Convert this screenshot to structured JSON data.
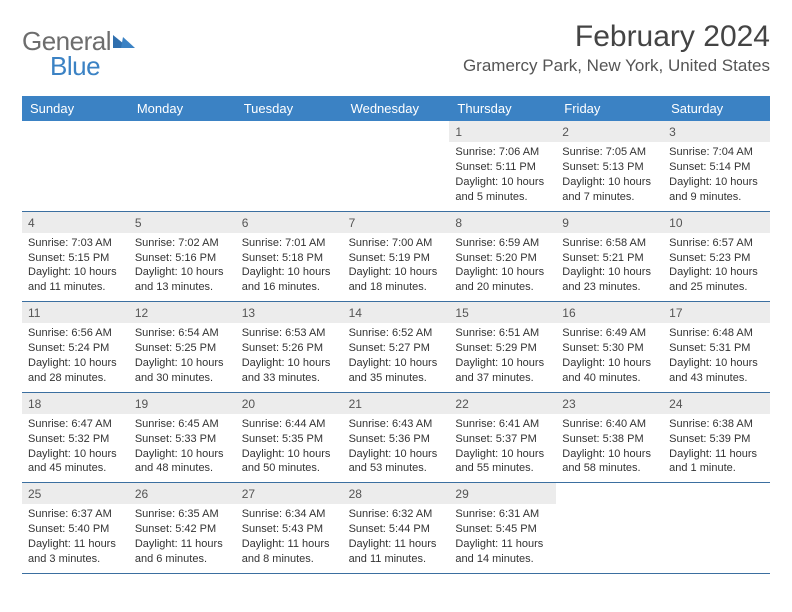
{
  "logo": {
    "general": "General",
    "blue": "Blue"
  },
  "title": "February 2024",
  "location": "Gramercy Park, New York, United States",
  "colors": {
    "header_bg": "#3b82c4",
    "header_text": "#ffffff",
    "daynum_bg": "#ececec",
    "row_border": "#3b6fa0",
    "text": "#333333",
    "title_text": "#444444",
    "logo_gray": "#6d6d6d",
    "logo_blue": "#3b82c4"
  },
  "daysOfWeek": [
    "Sunday",
    "Monday",
    "Tuesday",
    "Wednesday",
    "Thursday",
    "Friday",
    "Saturday"
  ],
  "weeks": [
    [
      {
        "n": "",
        "sunrise": "",
        "sunset": "",
        "daylight": ""
      },
      {
        "n": "",
        "sunrise": "",
        "sunset": "",
        "daylight": ""
      },
      {
        "n": "",
        "sunrise": "",
        "sunset": "",
        "daylight": ""
      },
      {
        "n": "",
        "sunrise": "",
        "sunset": "",
        "daylight": ""
      },
      {
        "n": "1",
        "sunrise": "Sunrise: 7:06 AM",
        "sunset": "Sunset: 5:11 PM",
        "daylight": "Daylight: 10 hours and 5 minutes."
      },
      {
        "n": "2",
        "sunrise": "Sunrise: 7:05 AM",
        "sunset": "Sunset: 5:13 PM",
        "daylight": "Daylight: 10 hours and 7 minutes."
      },
      {
        "n": "3",
        "sunrise": "Sunrise: 7:04 AM",
        "sunset": "Sunset: 5:14 PM",
        "daylight": "Daylight: 10 hours and 9 minutes."
      }
    ],
    [
      {
        "n": "4",
        "sunrise": "Sunrise: 7:03 AM",
        "sunset": "Sunset: 5:15 PM",
        "daylight": "Daylight: 10 hours and 11 minutes."
      },
      {
        "n": "5",
        "sunrise": "Sunrise: 7:02 AM",
        "sunset": "Sunset: 5:16 PM",
        "daylight": "Daylight: 10 hours and 13 minutes."
      },
      {
        "n": "6",
        "sunrise": "Sunrise: 7:01 AM",
        "sunset": "Sunset: 5:18 PM",
        "daylight": "Daylight: 10 hours and 16 minutes."
      },
      {
        "n": "7",
        "sunrise": "Sunrise: 7:00 AM",
        "sunset": "Sunset: 5:19 PM",
        "daylight": "Daylight: 10 hours and 18 minutes."
      },
      {
        "n": "8",
        "sunrise": "Sunrise: 6:59 AM",
        "sunset": "Sunset: 5:20 PM",
        "daylight": "Daylight: 10 hours and 20 minutes."
      },
      {
        "n": "9",
        "sunrise": "Sunrise: 6:58 AM",
        "sunset": "Sunset: 5:21 PM",
        "daylight": "Daylight: 10 hours and 23 minutes."
      },
      {
        "n": "10",
        "sunrise": "Sunrise: 6:57 AM",
        "sunset": "Sunset: 5:23 PM",
        "daylight": "Daylight: 10 hours and 25 minutes."
      }
    ],
    [
      {
        "n": "11",
        "sunrise": "Sunrise: 6:56 AM",
        "sunset": "Sunset: 5:24 PM",
        "daylight": "Daylight: 10 hours and 28 minutes."
      },
      {
        "n": "12",
        "sunrise": "Sunrise: 6:54 AM",
        "sunset": "Sunset: 5:25 PM",
        "daylight": "Daylight: 10 hours and 30 minutes."
      },
      {
        "n": "13",
        "sunrise": "Sunrise: 6:53 AM",
        "sunset": "Sunset: 5:26 PM",
        "daylight": "Daylight: 10 hours and 33 minutes."
      },
      {
        "n": "14",
        "sunrise": "Sunrise: 6:52 AM",
        "sunset": "Sunset: 5:27 PM",
        "daylight": "Daylight: 10 hours and 35 minutes."
      },
      {
        "n": "15",
        "sunrise": "Sunrise: 6:51 AM",
        "sunset": "Sunset: 5:29 PM",
        "daylight": "Daylight: 10 hours and 37 minutes."
      },
      {
        "n": "16",
        "sunrise": "Sunrise: 6:49 AM",
        "sunset": "Sunset: 5:30 PM",
        "daylight": "Daylight: 10 hours and 40 minutes."
      },
      {
        "n": "17",
        "sunrise": "Sunrise: 6:48 AM",
        "sunset": "Sunset: 5:31 PM",
        "daylight": "Daylight: 10 hours and 43 minutes."
      }
    ],
    [
      {
        "n": "18",
        "sunrise": "Sunrise: 6:47 AM",
        "sunset": "Sunset: 5:32 PM",
        "daylight": "Daylight: 10 hours and 45 minutes."
      },
      {
        "n": "19",
        "sunrise": "Sunrise: 6:45 AM",
        "sunset": "Sunset: 5:33 PM",
        "daylight": "Daylight: 10 hours and 48 minutes."
      },
      {
        "n": "20",
        "sunrise": "Sunrise: 6:44 AM",
        "sunset": "Sunset: 5:35 PM",
        "daylight": "Daylight: 10 hours and 50 minutes."
      },
      {
        "n": "21",
        "sunrise": "Sunrise: 6:43 AM",
        "sunset": "Sunset: 5:36 PM",
        "daylight": "Daylight: 10 hours and 53 minutes."
      },
      {
        "n": "22",
        "sunrise": "Sunrise: 6:41 AM",
        "sunset": "Sunset: 5:37 PM",
        "daylight": "Daylight: 10 hours and 55 minutes."
      },
      {
        "n": "23",
        "sunrise": "Sunrise: 6:40 AM",
        "sunset": "Sunset: 5:38 PM",
        "daylight": "Daylight: 10 hours and 58 minutes."
      },
      {
        "n": "24",
        "sunrise": "Sunrise: 6:38 AM",
        "sunset": "Sunset: 5:39 PM",
        "daylight": "Daylight: 11 hours and 1 minute."
      }
    ],
    [
      {
        "n": "25",
        "sunrise": "Sunrise: 6:37 AM",
        "sunset": "Sunset: 5:40 PM",
        "daylight": "Daylight: 11 hours and 3 minutes."
      },
      {
        "n": "26",
        "sunrise": "Sunrise: 6:35 AM",
        "sunset": "Sunset: 5:42 PM",
        "daylight": "Daylight: 11 hours and 6 minutes."
      },
      {
        "n": "27",
        "sunrise": "Sunrise: 6:34 AM",
        "sunset": "Sunset: 5:43 PM",
        "daylight": "Daylight: 11 hours and 8 minutes."
      },
      {
        "n": "28",
        "sunrise": "Sunrise: 6:32 AM",
        "sunset": "Sunset: 5:44 PM",
        "daylight": "Daylight: 11 hours and 11 minutes."
      },
      {
        "n": "29",
        "sunrise": "Sunrise: 6:31 AM",
        "sunset": "Sunset: 5:45 PM",
        "daylight": "Daylight: 11 hours and 14 minutes."
      },
      {
        "n": "",
        "sunrise": "",
        "sunset": "",
        "daylight": ""
      },
      {
        "n": "",
        "sunrise": "",
        "sunset": "",
        "daylight": ""
      }
    ]
  ]
}
